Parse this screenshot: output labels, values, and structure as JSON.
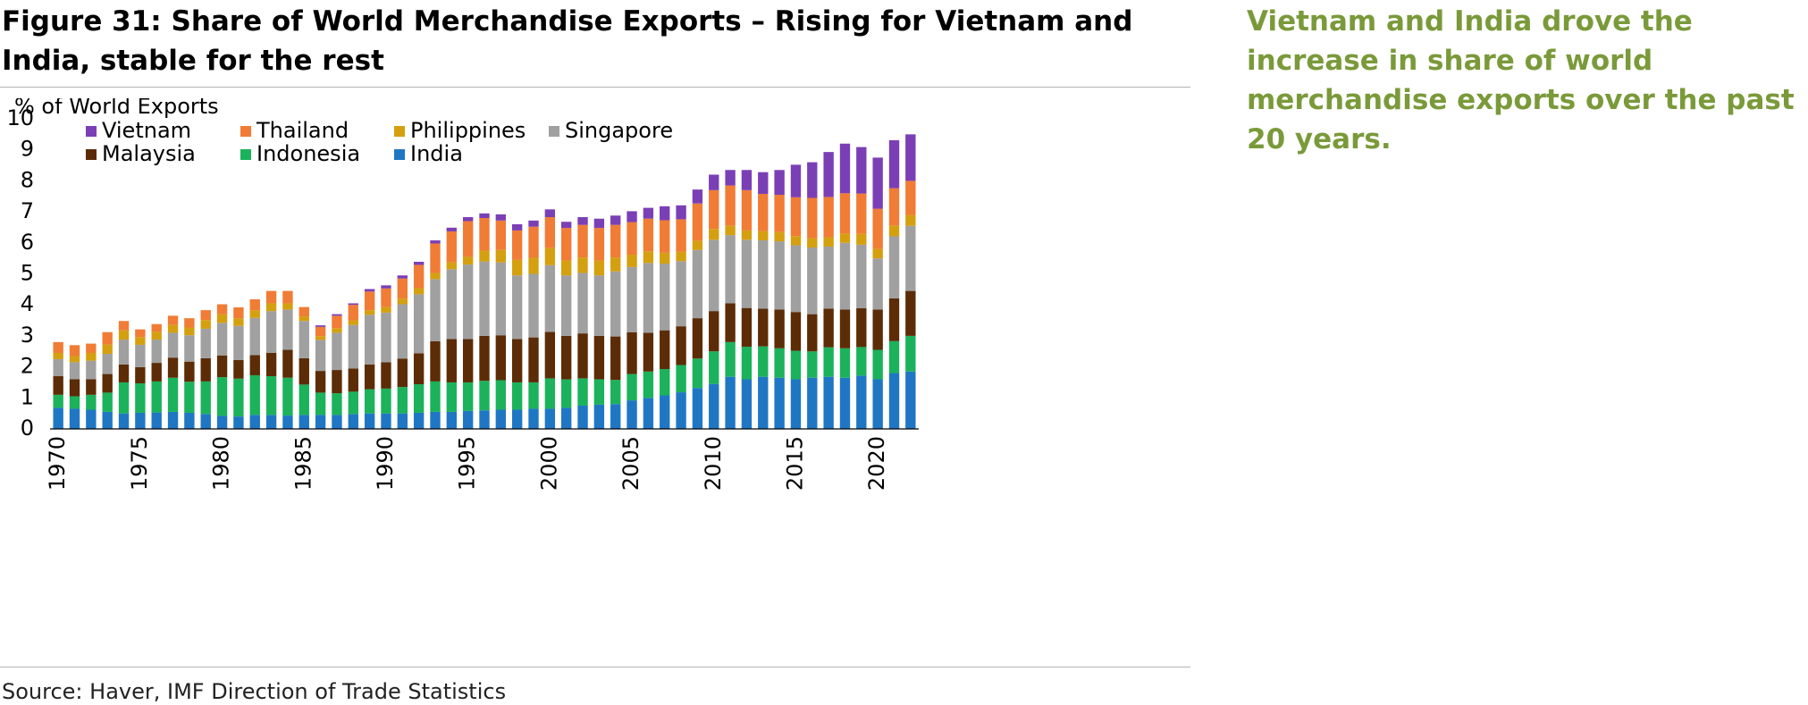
{
  "figure": {
    "title": "Figure 31: Share of World Merchandise Exports – Rising for Vietnam and India, stable for the rest",
    "source": "Source: Haver, IMF Direction of Trade Statistics",
    "side_note": "Vietnam and India drove the increase in share of world merchandise exports over the past 20 years.",
    "side_note_color": "#7a9a3a",
    "rule_color": "#b4b4b4"
  },
  "chart_data": {
    "type": "bar",
    "stacked": true,
    "ylabel": "% of World Exports",
    "xlabel": "",
    "ylim": [
      0,
      10
    ],
    "yticks": [
      0,
      1,
      2,
      3,
      4,
      5,
      6,
      7,
      8,
      9,
      10
    ],
    "xtick_labels": [
      "1970",
      "1975",
      "1980",
      "1985",
      "1990",
      "1995",
      "2000",
      "2005",
      "2010",
      "2015",
      "2020"
    ],
    "grid": false,
    "legend_position": "top-left",
    "categories": [
      1970,
      1971,
      1972,
      1973,
      1974,
      1975,
      1976,
      1977,
      1978,
      1979,
      1980,
      1981,
      1982,
      1983,
      1984,
      1985,
      1986,
      1987,
      1988,
      1989,
      1990,
      1991,
      1992,
      1993,
      1994,
      1995,
      1996,
      1997,
      1998,
      1999,
      2000,
      2001,
      2002,
      2003,
      2004,
      2005,
      2006,
      2007,
      2008,
      2009,
      2010,
      2011,
      2012,
      2013,
      2014,
      2015,
      2016,
      2017,
      2018,
      2019,
      2020,
      2021,
      2022
    ],
    "legend_order": [
      "Vietnam",
      "Thailand",
      "Philippines",
      "Singapore",
      "Malaysia",
      "Indonesia",
      "India"
    ],
    "series": [
      {
        "name": "India",
        "color": "#1f77c4",
        "values": [
          0.68,
          0.65,
          0.62,
          0.55,
          0.5,
          0.52,
          0.53,
          0.55,
          0.52,
          0.48,
          0.42,
          0.4,
          0.45,
          0.45,
          0.43,
          0.45,
          0.45,
          0.45,
          0.48,
          0.5,
          0.5,
          0.5,
          0.52,
          0.55,
          0.55,
          0.58,
          0.6,
          0.62,
          0.62,
          0.65,
          0.65,
          0.68,
          0.75,
          0.78,
          0.8,
          0.92,
          1.0,
          1.08,
          1.18,
          1.32,
          1.45,
          1.68,
          1.6,
          1.68,
          1.65,
          1.6,
          1.65,
          1.68,
          1.65,
          1.72,
          1.6,
          1.8,
          1.85
        ]
      },
      {
        "name": "Indonesia",
        "color": "#1bb25b",
        "values": [
          0.42,
          0.4,
          0.48,
          0.62,
          1.0,
          0.95,
          1.0,
          1.1,
          1.0,
          1.05,
          1.25,
          1.22,
          1.28,
          1.25,
          1.22,
          0.98,
          0.72,
          0.7,
          0.72,
          0.78,
          0.8,
          0.85,
          0.92,
          0.98,
          0.95,
          0.92,
          0.95,
          0.95,
          0.88,
          0.85,
          0.98,
          0.92,
          0.88,
          0.82,
          0.78,
          0.85,
          0.85,
          0.85,
          0.88,
          0.95,
          1.05,
          1.12,
          1.05,
          0.98,
          0.95,
          0.92,
          0.85,
          0.95,
          0.95,
          0.92,
          0.95,
          1.03,
          1.15
        ]
      },
      {
        "name": "Malaysia",
        "color": "#5c2c06",
        "values": [
          0.6,
          0.55,
          0.5,
          0.6,
          0.58,
          0.52,
          0.6,
          0.65,
          0.65,
          0.75,
          0.7,
          0.6,
          0.65,
          0.75,
          0.9,
          0.85,
          0.7,
          0.75,
          0.75,
          0.8,
          0.85,
          0.92,
          1.0,
          1.3,
          1.4,
          1.4,
          1.45,
          1.45,
          1.4,
          1.45,
          1.5,
          1.4,
          1.45,
          1.4,
          1.4,
          1.35,
          1.25,
          1.25,
          1.25,
          1.3,
          1.3,
          1.25,
          1.25,
          1.22,
          1.25,
          1.25,
          1.2,
          1.25,
          1.25,
          1.25,
          1.3,
          1.38,
          1.45
        ]
      },
      {
        "name": "Singapore",
        "color": "#a0a0a0",
        "values": [
          0.55,
          0.55,
          0.6,
          0.65,
          0.8,
          0.72,
          0.75,
          0.8,
          0.85,
          0.95,
          1.05,
          1.1,
          1.2,
          1.35,
          1.3,
          1.2,
          1.0,
          1.2,
          1.4,
          1.6,
          1.6,
          1.75,
          1.9,
          2.0,
          2.25,
          2.4,
          2.4,
          2.35,
          2.05,
          2.05,
          2.15,
          1.95,
          1.95,
          1.95,
          2.1,
          2.1,
          2.25,
          2.15,
          2.1,
          2.2,
          2.3,
          2.2,
          2.2,
          2.2,
          2.2,
          2.15,
          2.15,
          2.0,
          2.15,
          2.05,
          1.65,
          2.0,
          2.1
        ]
      },
      {
        "name": "Philippines",
        "color": "#d4a010",
        "values": [
          0.2,
          0.2,
          0.25,
          0.3,
          0.3,
          0.25,
          0.25,
          0.25,
          0.25,
          0.28,
          0.28,
          0.25,
          0.25,
          0.25,
          0.2,
          0.15,
          0.12,
          0.15,
          0.15,
          0.15,
          0.18,
          0.18,
          0.2,
          0.2,
          0.22,
          0.25,
          0.35,
          0.4,
          0.5,
          0.52,
          0.55,
          0.48,
          0.5,
          0.48,
          0.45,
          0.4,
          0.38,
          0.35,
          0.3,
          0.3,
          0.35,
          0.3,
          0.3,
          0.3,
          0.3,
          0.3,
          0.3,
          0.3,
          0.3,
          0.35,
          0.3,
          0.35,
          0.35
        ]
      },
      {
        "name": "Thailand",
        "color": "#f07c35",
        "values": [
          0.35,
          0.35,
          0.3,
          0.4,
          0.3,
          0.25,
          0.25,
          0.3,
          0.3,
          0.32,
          0.32,
          0.35,
          0.35,
          0.4,
          0.4,
          0.3,
          0.3,
          0.4,
          0.5,
          0.6,
          0.6,
          0.65,
          0.75,
          0.95,
          1.0,
          1.15,
          1.05,
          0.95,
          0.95,
          1.0,
          1.0,
          1.05,
          1.05,
          1.05,
          1.05,
          1.05,
          1.05,
          1.05,
          1.05,
          1.2,
          1.25,
          1.3,
          1.3,
          1.2,
          1.2,
          1.25,
          1.3,
          1.3,
          1.3,
          1.3,
          1.3,
          1.2,
          1.1
        ]
      },
      {
        "name": "Vietnam",
        "color": "#7b3fb5",
        "values": [
          0,
          0,
          0,
          0,
          0,
          0,
          0,
          0,
          0,
          0,
          0,
          0,
          0,
          0,
          0,
          0,
          0.05,
          0.05,
          0.05,
          0.08,
          0.1,
          0.1,
          0.1,
          0.1,
          0.12,
          0.13,
          0.15,
          0.2,
          0.2,
          0.2,
          0.25,
          0.2,
          0.25,
          0.3,
          0.3,
          0.35,
          0.35,
          0.45,
          0.45,
          0.45,
          0.5,
          0.5,
          0.65,
          0.7,
          0.8,
          1.05,
          1.15,
          1.45,
          1.6,
          1.5,
          1.65,
          1.55,
          1.5
        ]
      }
    ]
  }
}
